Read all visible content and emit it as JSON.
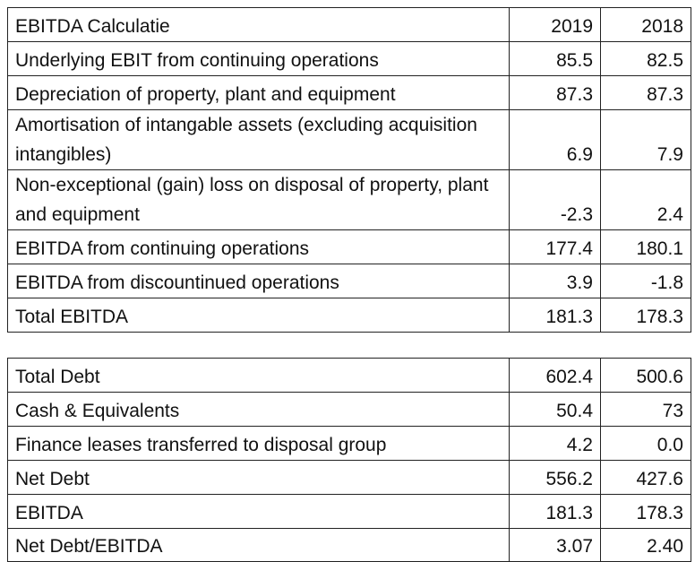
{
  "ebitda_table": {
    "header": {
      "label": "EBITDA Calculatie",
      "y2019": "2019",
      "y2018": "2018"
    },
    "rows": [
      {
        "label": "Underlying EBIT from continuing operations",
        "v2019": "85.5",
        "v2018": "82.5"
      },
      {
        "label": "Depreciation of property, plant and equipment",
        "v2019": "87.3",
        "v2018": "87.3"
      },
      {
        "label": "Amortisation of intangable assets (excluding acquisition intangibles)",
        "v2019": "6.9",
        "v2018": "7.9"
      },
      {
        "label": "Non-exceptional (gain) loss on disposal of property, plant and equipment",
        "v2019": "-2.3",
        "v2018": "2.4"
      },
      {
        "label": "EBITDA from continuing operations",
        "v2019": "177.4",
        "v2018": "180.1"
      },
      {
        "label": "EBITDA from discountinued operations",
        "v2019": "3.9",
        "v2018": "-1.8"
      },
      {
        "label": "Total EBITDA",
        "v2019": "181.3",
        "v2018": "178.3"
      }
    ]
  },
  "debt_table": {
    "rows": [
      {
        "label": "Total Debt",
        "v2019": "602.4",
        "v2018": "500.6"
      },
      {
        "label": "Cash & Equivalents",
        "v2019": "50.4",
        "v2018": "73"
      },
      {
        "label": "Finance leases transferred to disposal group",
        "v2019": "4.2",
        "v2018": "0.0"
      },
      {
        "label": "Net Debt",
        "v2019": "556.2",
        "v2018": "427.6"
      },
      {
        "label": "EBITDA",
        "v2019": "181.3",
        "v2018": "178.3"
      },
      {
        "label": "Net Debt/EBITDA",
        "v2019": "3.07",
        "v2018": "2.40"
      }
    ]
  }
}
